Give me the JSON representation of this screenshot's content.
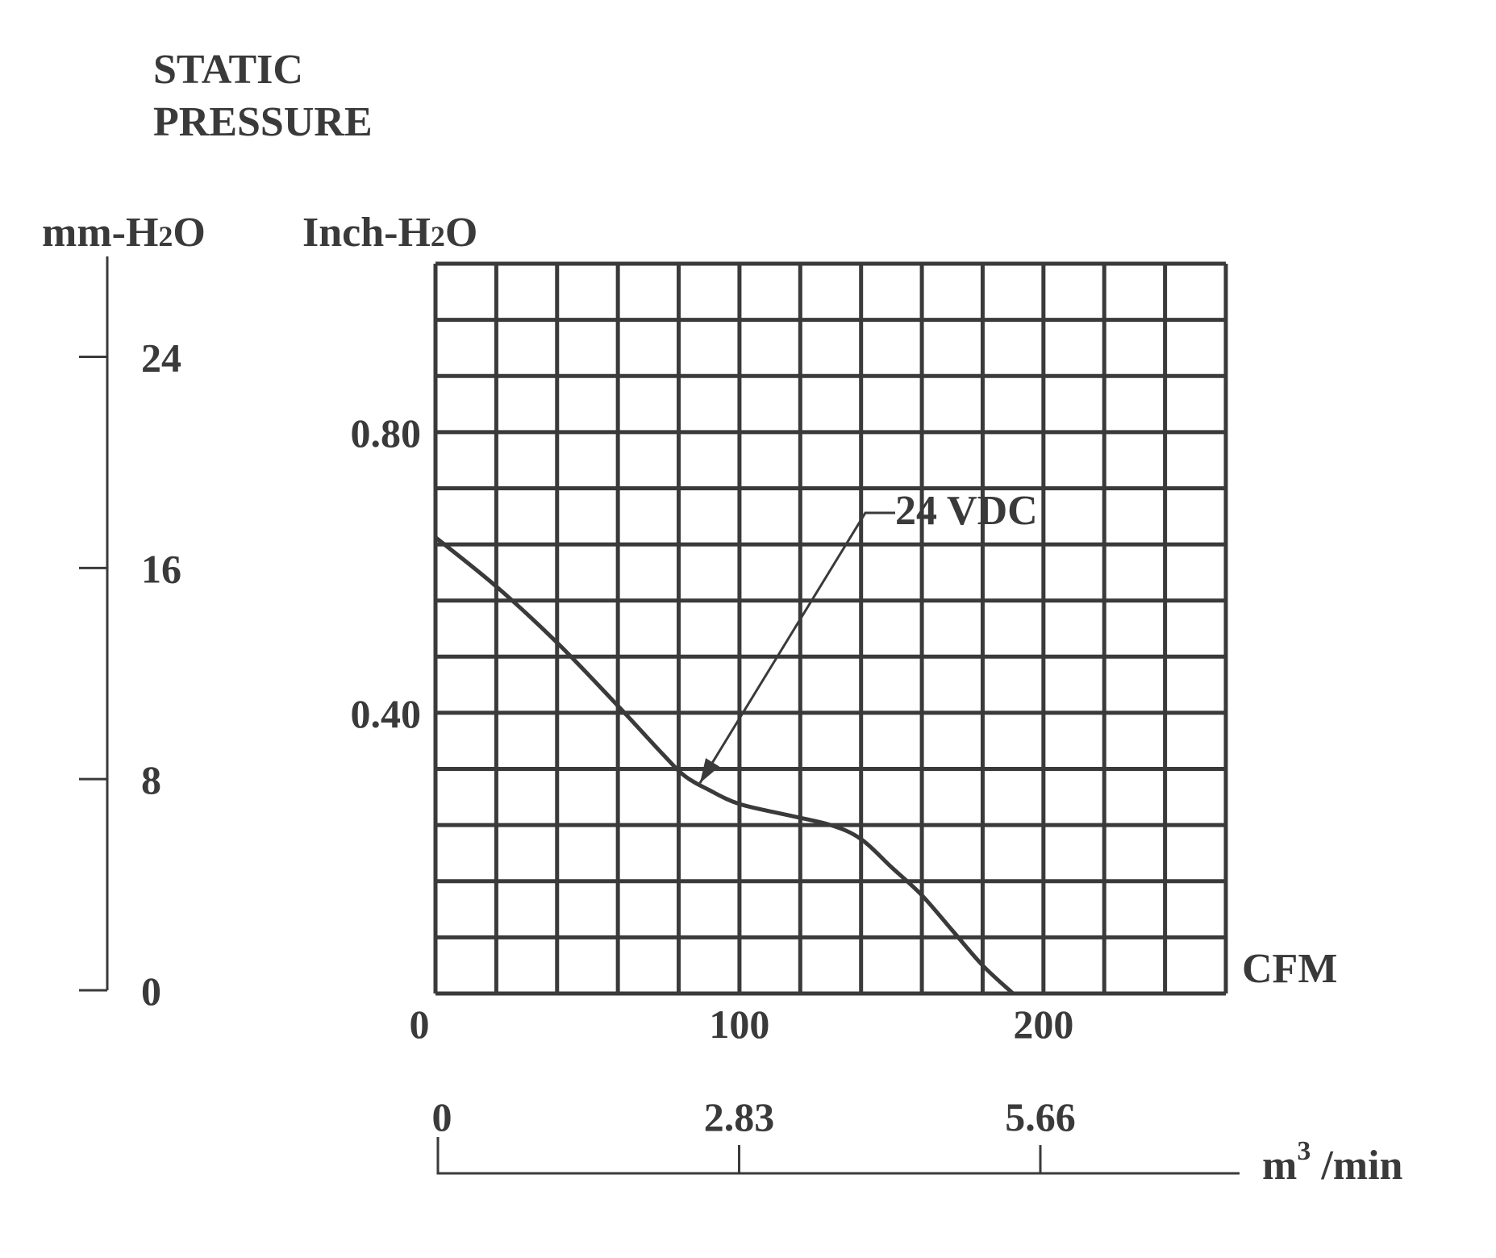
{
  "chart_data": {
    "type": "line",
    "title_line1": "STATIC",
    "title_line2": "PRESSURE",
    "y_left_unit": "mm-H",
    "y_left_unit_sub": "2",
    "y_left_unit_end": "O",
    "y_unit": "Inch-H",
    "y_unit_sub": "2",
    "y_unit_end": "O",
    "x_unit": "CFM",
    "x2_unit_base": "m",
    "x2_unit_sup": "3",
    "x2_unit_end": " /min",
    "xlim": [
      0,
      260
    ],
    "ylim": [
      0,
      1.04
    ],
    "x_ticks": [
      {
        "value": 0,
        "label": "0"
      },
      {
        "value": 100,
        "label": "100"
      },
      {
        "value": 200,
        "label": "200"
      }
    ],
    "y_ticks": [
      {
        "value": 0.4,
        "label": "0.40"
      },
      {
        "value": 0.8,
        "label": "0.80"
      }
    ],
    "y_left_ticks": [
      {
        "value": 0,
        "label": "0"
      },
      {
        "value": 8,
        "label": "8"
      },
      {
        "value": 16,
        "label": "16"
      },
      {
        "value": 24,
        "label": "24"
      }
    ],
    "y_left_max": 27.5,
    "x2_ticks": [
      {
        "value": 0,
        "label": "0"
      },
      {
        "value": 2.83,
        "label": "2.83"
      },
      {
        "value": 5.66,
        "label": "5.66"
      }
    ],
    "grid": true,
    "series": [
      {
        "name": "24 VDC",
        "x": [
          0,
          20,
          40,
          60,
          75,
          82,
          90,
          100,
          115,
          130,
          140,
          150,
          160,
          170,
          180,
          190
        ],
        "y": [
          0.65,
          0.58,
          0.5,
          0.41,
          0.34,
          0.31,
          0.29,
          0.27,
          0.255,
          0.24,
          0.22,
          0.18,
          0.14,
          0.09,
          0.04,
          0.0
        ]
      }
    ],
    "annotation": {
      "text": "24 VDC",
      "target_x": 87,
      "target_y": 0.3
    }
  }
}
